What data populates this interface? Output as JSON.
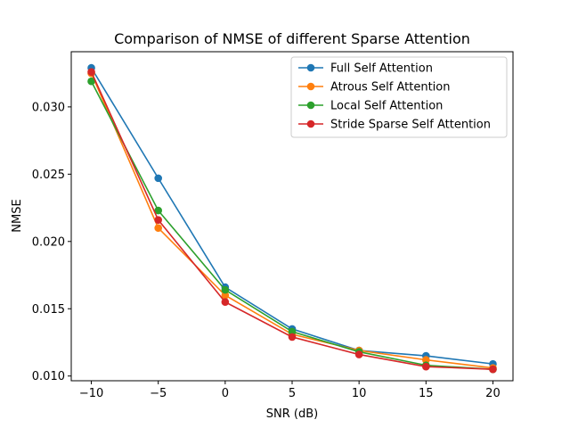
{
  "chart_data": {
    "type": "line",
    "title": "Comparison of NMSE of different Sparse Attention",
    "xlabel": "SNR (dB)",
    "ylabel": "NMSE",
    "x": [
      -10,
      -5,
      0,
      5,
      10,
      15,
      20
    ],
    "xticks": [
      -10,
      -5,
      0,
      5,
      10,
      15,
      20
    ],
    "xtick_labels": [
      "−10",
      "−5",
      "0",
      "5",
      "10",
      "15",
      "20"
    ],
    "yticks": [
      0.01,
      0.015,
      0.02,
      0.025,
      0.03
    ],
    "ytick_labels": [
      "0.010",
      "0.015",
      "0.020",
      "0.025",
      "0.030"
    ],
    "xlim": [
      -11.5,
      21.5
    ],
    "ylim": [
      0.00965,
      0.0341
    ],
    "grid": false,
    "legend_position": "top-right",
    "series": [
      {
        "name": "Full Self Attention",
        "color": "#1f77b4",
        "values": [
          0.0329,
          0.0247,
          0.0166,
          0.0135,
          0.0119,
          0.0115,
          0.0109
        ]
      },
      {
        "name": "Atrous Self Attention",
        "color": "#ff7f0e",
        "values": [
          0.0325,
          0.021,
          0.016,
          0.0131,
          0.0119,
          0.0112,
          0.0106
        ]
      },
      {
        "name": "Local Self Attention",
        "color": "#2ca02c",
        "values": [
          0.0319,
          0.0223,
          0.0164,
          0.0133,
          0.0118,
          0.0108,
          0.0105
        ]
      },
      {
        "name": "Stride Sparse Self Attention",
        "color": "#d62728",
        "values": [
          0.0326,
          0.0216,
          0.0155,
          0.0129,
          0.0116,
          0.0107,
          0.0105
        ]
      }
    ]
  }
}
